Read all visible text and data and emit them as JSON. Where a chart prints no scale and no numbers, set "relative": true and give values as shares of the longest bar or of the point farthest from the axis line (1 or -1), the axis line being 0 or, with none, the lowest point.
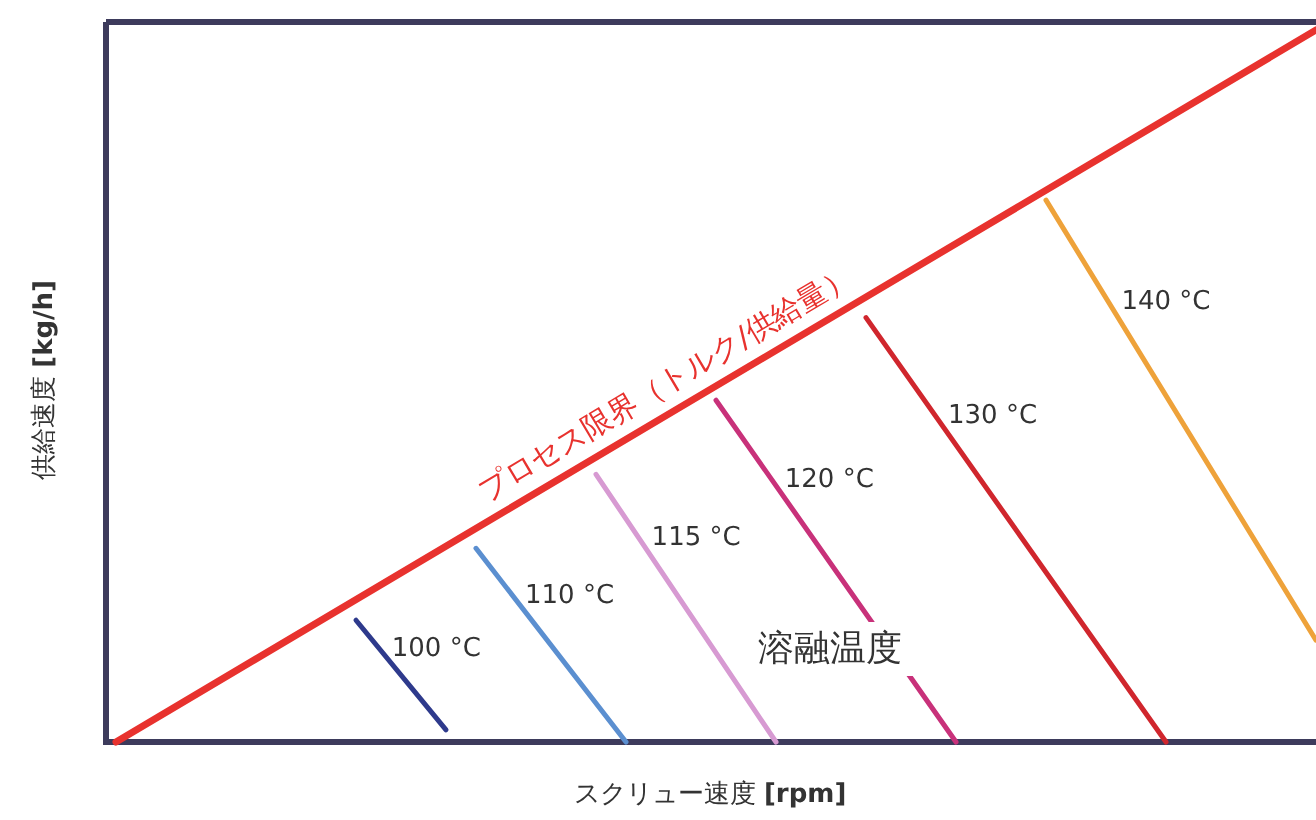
{
  "chart_data": {
    "type": "line",
    "relative": true,
    "xlabel": "スクリュー速度 **[rpm]**",
    "ylabel": "供給速度 **[kg/h]**",
    "annotations": [
      "溶融温度"
    ],
    "categories": [
      null,
      null,
      null,
      null,
      null,
      null,
      null,
      null,
      null,
      null,
      null,
      null,
      null,
      null,
      null,
      null,
      null,
      null,
      null,
      null,
      null,
      null,
      null,
      null,
      null,
      null,
      null,
      null,
      null,
      null,
      null,
      null,
      null,
      null,
      null,
      null,
      null,
      null,
      null,
      null,
      null
    ],
    "series": [
      {
        "name": "プロセス限界（トルク/供給量）",
        "color": "#e8322e",
        "values": [
          0,
          null,
          null,
          null,
          null,
          null,
          null,
          null,
          null,
          null,
          null,
          null,
          null,
          null,
          null,
          null,
          null,
          null,
          null,
          null,
          null,
          null,
          null,
          null,
          null,
          null,
          null,
          null,
          null,
          null,
          null,
          null,
          null,
          null,
          null,
          null,
          null,
          null,
          null,
          null,
          1
        ]
      },
      {
        "name": "100 °C",
        "color": "#2e3a8c",
        "values": [
          null,
          null,
          null,
          null,
          null,
          null,
          null,
          null,
          0.171,
          null,
          null,
          0.017,
          null,
          null,
          null,
          null,
          null,
          null,
          null,
          null,
          null,
          null,
          null,
          null,
          null,
          null,
          null,
          null,
          null,
          null,
          null,
          null,
          null,
          null,
          null,
          null,
          null,
          null,
          null,
          null,
          null
        ]
      },
      {
        "name": "110 °C",
        "color": "#5b8fd0",
        "values": [
          null,
          null,
          null,
          null,
          null,
          null,
          null,
          null,
          null,
          null,
          null,
          null,
          0.272,
          null,
          null,
          null,
          null,
          0,
          null,
          null,
          null,
          null,
          null,
          null,
          null,
          null,
          null,
          null,
          null,
          null,
          null,
          null,
          null,
          null,
          null,
          null,
          null,
          null,
          null,
          null,
          null
        ]
      },
      {
        "name": "115 °C",
        "color": "#d79ad2",
        "values": [
          null,
          null,
          null,
          null,
          null,
          null,
          null,
          null,
          null,
          null,
          null,
          null,
          null,
          null,
          null,
          null,
          0.376,
          null,
          null,
          null,
          null,
          null,
          0,
          null,
          null,
          null,
          null,
          null,
          null,
          null,
          null,
          null,
          null,
          null,
          null,
          null,
          null,
          null,
          null,
          null,
          null
        ]
      },
      {
        "name": "120 °C",
        "color": "#c8317a",
        "values": [
          null,
          null,
          null,
          null,
          null,
          null,
          null,
          null,
          null,
          null,
          null,
          null,
          null,
          null,
          null,
          null,
          null,
          null,
          null,
          null,
          0.48,
          null,
          null,
          null,
          null,
          null,
          null,
          null,
          0,
          null,
          null,
          null,
          null,
          null,
          null,
          null,
          null,
          null,
          null,
          null,
          null
        ]
      },
      {
        "name": "130 °C",
        "color": "#d0262d",
        "values": [
          null,
          null,
          null,
          null,
          null,
          null,
          null,
          null,
          null,
          null,
          null,
          null,
          null,
          null,
          null,
          null,
          null,
          null,
          null,
          null,
          null,
          null,
          null,
          null,
          null,
          0.596,
          null,
          null,
          null,
          null,
          null,
          null,
          null,
          null,
          null,
          0,
          null,
          null,
          null,
          null,
          null
        ]
      },
      {
        "name": "140 °C",
        "color": "#eea23a",
        "values": [
          null,
          null,
          null,
          null,
          null,
          null,
          null,
          null,
          null,
          null,
          null,
          null,
          null,
          null,
          null,
          null,
          null,
          null,
          null,
          null,
          null,
          null,
          null,
          null,
          null,
          null,
          null,
          null,
          null,
          null,
          null,
          0.761,
          null,
          null,
          null,
          null,
          null,
          null,
          null,
          null,
          0.143
        ]
      }
    ]
  }
}
